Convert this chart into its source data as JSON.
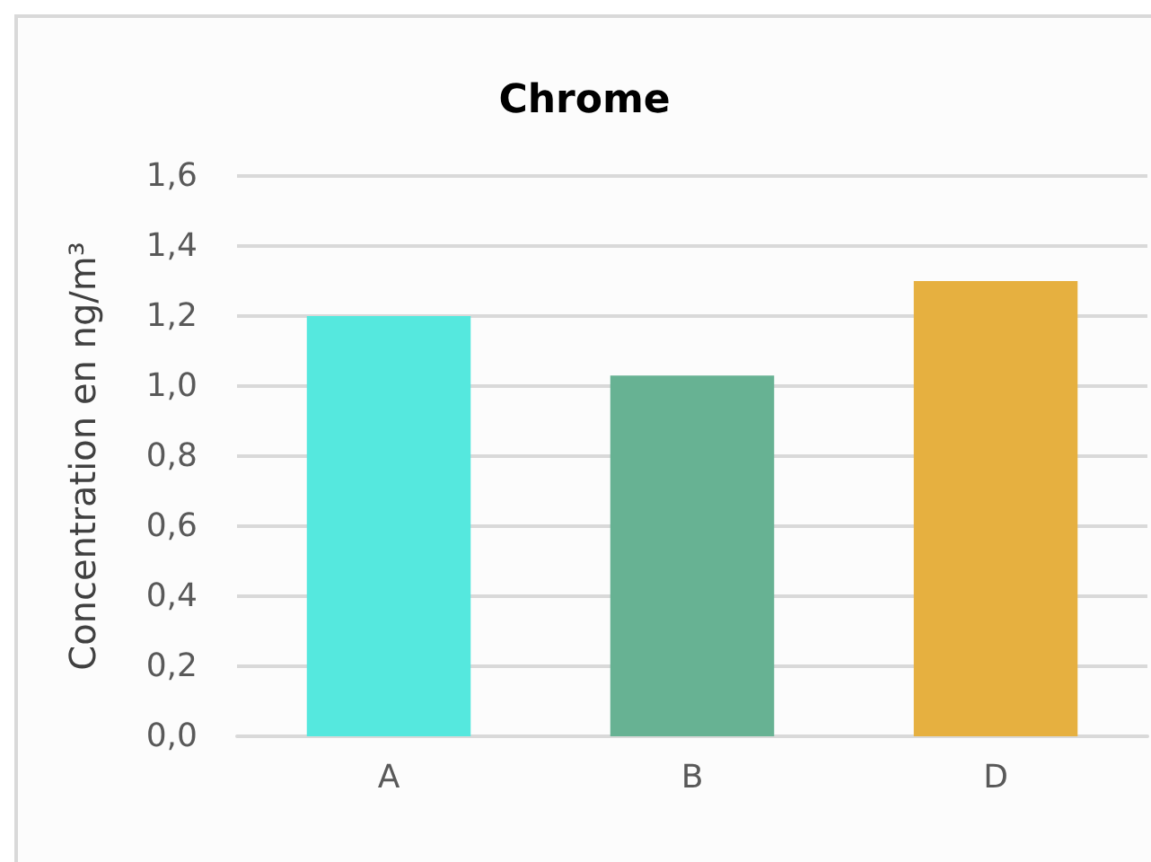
{
  "chart_data": {
    "type": "bar",
    "title": "Chrome",
    "ylabel": "Concentration en ng/m³",
    "categories": [
      "A",
      "B",
      "D"
    ],
    "values": [
      1.2,
      1.03,
      1.3
    ],
    "colors": [
      "#55e8de",
      "#67b293",
      "#e6b040"
    ],
    "ylim": [
      0,
      1.6
    ],
    "yticks": [
      {
        "value": 0,
        "label": "0,0"
      },
      {
        "value": 0.2,
        "label": "0,2"
      },
      {
        "value": 0.4,
        "label": "0,4"
      },
      {
        "value": 0.6,
        "label": "0,6"
      },
      {
        "value": 0.8,
        "label": "0,8"
      },
      {
        "value": 1.0,
        "label": "1,0"
      },
      {
        "value": 1.2,
        "label": "1,2"
      },
      {
        "value": 1.4,
        "label": "1,4"
      },
      {
        "value": 1.6,
        "label": "1,6"
      }
    ],
    "grid": "y"
  }
}
